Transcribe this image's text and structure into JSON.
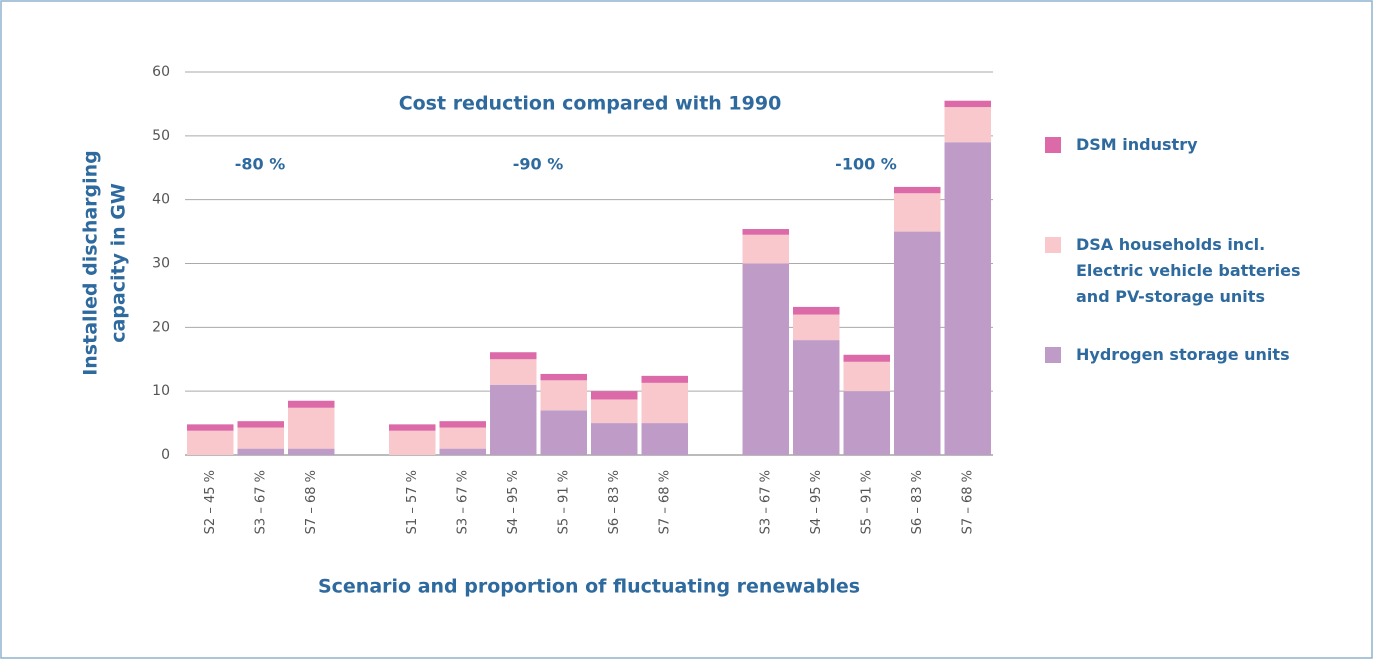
{
  "chart_data": {
    "type": "bar",
    "stacked": true,
    "title": "Cost reduction compared with 1990",
    "annotations": [
      "-80 %",
      "-90 %",
      "-100 %"
    ],
    "xlabel": "Scenario and proportion of fluctuating renewables",
    "ylabel": [
      "Installed discharging",
      "capacity in GW"
    ],
    "categories": [
      "S2 – 45 %",
      "S3 – 67 %",
      "S7 – 68 %",
      null,
      "S1 – 57 %",
      "S3 – 67 %",
      "S4 – 95 %",
      "S5 – 91 %",
      "S6 – 83 %",
      "S7 – 68 %",
      null,
      "S3 – 67 %",
      "S4 – 95 %",
      "S5 – 91 %",
      "S6 – 83 %",
      "S7 – 68 %"
    ],
    "series": [
      {
        "name": "DSM industry",
        "color": "#dc6aa8",
        "values": [
          1,
          1,
          1.1,
          null,
          1,
          1,
          1.1,
          1,
          1.3,
          1.1,
          null,
          0.9,
          1.2,
          1.1,
          1,
          1
        ]
      },
      {
        "name": "DSA households incl. Electric vehicle batteries and PV-storage units",
        "color": "#f9c8cc",
        "values": [
          3.8,
          3.3,
          6.4,
          null,
          3.8,
          3.3,
          4,
          4.7,
          3.7,
          6.3,
          null,
          4.5,
          4,
          4.6,
          6,
          5.5
        ]
      },
      {
        "name": "Hydrogen storage units",
        "color": "#bf9cc8",
        "values": [
          0,
          1,
          1,
          null,
          0,
          1,
          11,
          7,
          5,
          5,
          null,
          30,
          18,
          10,
          35,
          49
        ]
      }
    ],
    "ylim": [
      0,
      60
    ],
    "yticks": [
      0,
      10,
      20,
      30,
      40,
      50,
      60
    ],
    "grid": true
  }
}
